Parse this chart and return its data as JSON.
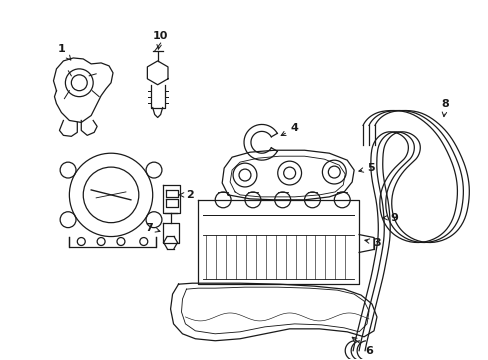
{
  "background_color": "#ffffff",
  "line_color": "#1a1a1a",
  "lw": 0.9
}
